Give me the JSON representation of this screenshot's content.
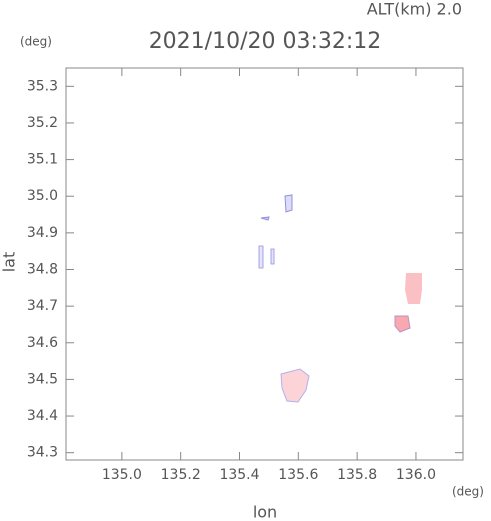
{
  "chart_data": {
    "type": "map",
    "title": "2021/10/20 03:32:12",
    "subtitle": "ALT(km) 2.0",
    "x_label": "lon",
    "y_label": "lat",
    "x_unit": "(deg)",
    "y_unit": "(deg)",
    "xlim": [
      134.81,
      136.16
    ],
    "ylim": [
      34.28,
      35.35
    ],
    "xticks": [
      {
        "value": 135.0,
        "label": "135.0"
      },
      135.2,
      135.4,
      135.6,
      135.8,
      {
        "value": 136.0,
        "label": "136.0"
      }
    ],
    "yticks": [
      34.3,
      34.4,
      34.5,
      34.6,
      34.7,
      34.8,
      34.9,
      {
        "value": 35.0,
        "label": "35.0"
      },
      35.1,
      35.2,
      35.3
    ]
  }
}
